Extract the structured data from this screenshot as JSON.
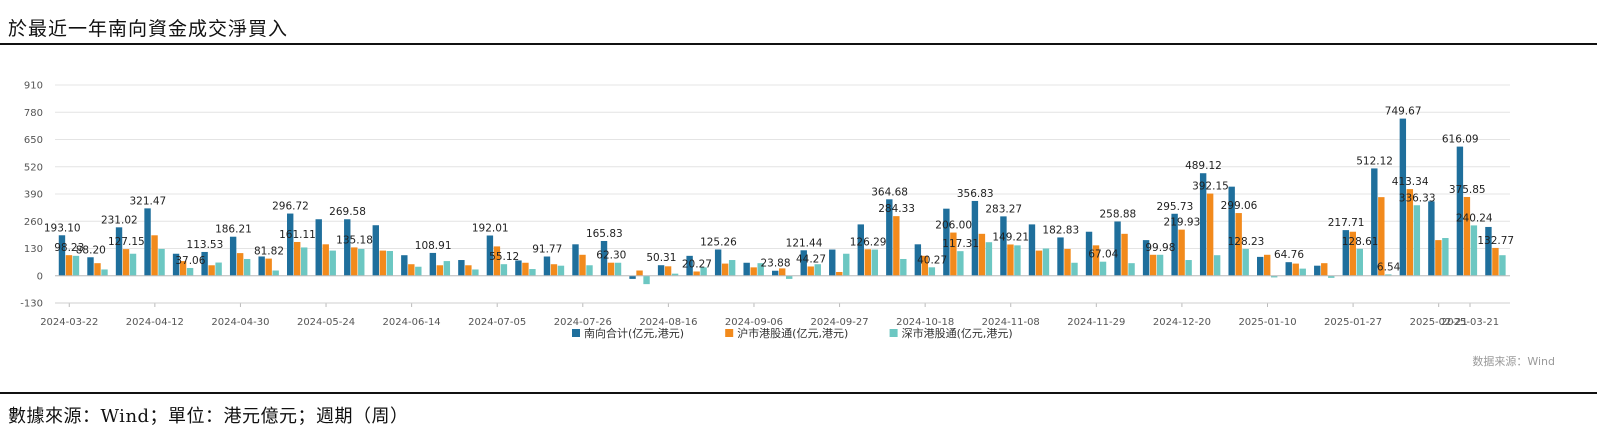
{
  "title": "於最近一年南向資金成交淨買入",
  "footer": "數據來源：Wind；單位：港元億元；週期（周）",
  "source_note": "数据来源：Wind",
  "colors": {
    "south": "#1f6f9c",
    "sh": "#f28a1c",
    "sz": "#6cc7c2"
  },
  "chart_data": {
    "type": "bar",
    "ylim": [
      -130,
      910
    ],
    "yticks": [
      -130,
      0,
      130,
      260,
      390,
      520,
      650,
      780,
      910
    ],
    "grid": true,
    "legend_position": "bottom",
    "xtick_labels": [
      {
        "index": 0,
        "label": "2024-03-22"
      },
      {
        "index": 3,
        "label": "2024-04-12"
      },
      {
        "index": 6,
        "label": "2024-04-30"
      },
      {
        "index": 9,
        "label": "2024-05-24"
      },
      {
        "index": 12,
        "label": "2024-06-14"
      },
      {
        "index": 15,
        "label": "2024-07-05"
      },
      {
        "index": 18,
        "label": "2024-07-26"
      },
      {
        "index": 21,
        "label": "2024-08-16"
      },
      {
        "index": 24,
        "label": "2024-09-06"
      },
      {
        "index": 27,
        "label": "2024-09-27"
      },
      {
        "index": 30,
        "label": "2024-10-18"
      },
      {
        "index": 33,
        "label": "2024-11-08"
      },
      {
        "index": 36,
        "label": "2024-11-29"
      },
      {
        "index": 39,
        "label": "2024-12-20"
      },
      {
        "index": 42,
        "label": "2025-01-10"
      },
      {
        "index": 45,
        "label": "2025-01-27"
      },
      {
        "index": 48,
        "label": "2025-02-21"
      },
      {
        "index": 52,
        "label": "2025-03-21"
      }
    ],
    "series": [
      {
        "name": "南向合计(亿元,港元)",
        "values": [
          193.1,
          88.2,
          231.02,
          321.47,
          105,
          113.53,
          186.21,
          92,
          296.72,
          269.58,
          269.58,
          241,
          98,
          108.91,
          75,
          192.01,
          73,
          91.77,
          150,
          165.83,
          -15,
          50.31,
          95,
          125.26,
          62,
          23.88,
          121.44,
          125,
          245,
          364.68,
          150,
          320,
          356.83,
          283.27,
          245,
          182.83,
          210,
          258.88,
          170,
          295.73,
          489.12,
          425,
          90,
          64.76,
          48,
          217.71,
          512.12,
          749.67,
          355,
          616.09,
          232.77
        ]
      },
      {
        "name": "沪市港股通(亿元,港元)",
        "values": [
          98.23,
          60,
          127.15,
          193,
          70,
          50,
          108,
          81.82,
          161.11,
          150,
          135.18,
          120,
          55,
          50,
          50,
          140,
          62,
          55,
          100,
          62.3,
          25,
          45,
          20.27,
          58,
          40,
          35,
          44.27,
          18,
          126.29,
          284.33,
          95,
          206.0,
          200,
          149.21,
          120,
          128,
          145,
          200,
          100,
          219.93,
          392.15,
          299.06,
          100,
          58,
          60,
          210,
          375,
          413.34,
          170,
          375.85,
          132.77
        ]
      },
      {
        "name": "深市港股通(亿元,港元)",
        "values": [
          95,
          30,
          105,
          128,
          37.06,
          63,
          80,
          25,
          135,
          120,
          128,
          118,
          43,
          70,
          30,
          55.12,
          32,
          48,
          50,
          62,
          -40,
          10,
          40,
          75,
          60,
          -15,
          55,
          105,
          125,
          80,
          40.27,
          117.31,
          160,
          145,
          130,
          62,
          67.04,
          60,
          99.98,
          75,
          98,
          128.23,
          -8,
          34,
          -10,
          128.61,
          6.54,
          336.33,
          180,
          240.24,
          98
        ]
      }
    ],
    "annotations": [
      {
        "series": 0,
        "index": 0,
        "text": "193.10"
      },
      {
        "series": 1,
        "index": 0,
        "text": "98.23"
      },
      {
        "series": 0,
        "index": 1,
        "text": "88.20"
      },
      {
        "series": 0,
        "index": 2,
        "text": "231.02"
      },
      {
        "series": 0,
        "index": 3,
        "text": "321.47"
      },
      {
        "series": 1,
        "index": 2,
        "text": "127.15"
      },
      {
        "series": 2,
        "index": 4,
        "text": "37.06"
      },
      {
        "series": 0,
        "index": 5,
        "text": "113.53"
      },
      {
        "series": 0,
        "index": 6,
        "text": "186.21"
      },
      {
        "series": 1,
        "index": 7,
        "text": "81.82"
      },
      {
        "series": 0,
        "index": 8,
        "text": "296.72"
      },
      {
        "series": 1,
        "index": 8,
        "text": "161.11"
      },
      {
        "series": 0,
        "index": 10,
        "text": "269.58"
      },
      {
        "series": 1,
        "index": 10,
        "text": "135.18"
      },
      {
        "series": 0,
        "index": 13,
        "text": "108.91"
      },
      {
        "series": 0,
        "index": 15,
        "text": "192.01"
      },
      {
        "series": 2,
        "index": 15,
        "text": "55.12"
      },
      {
        "series": 0,
        "index": 17,
        "text": "91.77"
      },
      {
        "series": 0,
        "index": 19,
        "text": "165.83"
      },
      {
        "series": 1,
        "index": 19,
        "text": "62.30"
      },
      {
        "series": 0,
        "index": 21,
        "text": "50.31"
      },
      {
        "series": 1,
        "index": 22,
        "text": "20.27"
      },
      {
        "series": 0,
        "index": 23,
        "text": "125.26"
      },
      {
        "series": 0,
        "index": 25,
        "text": "23.88"
      },
      {
        "series": 0,
        "index": 26,
        "text": "121.44"
      },
      {
        "series": 1,
        "index": 26,
        "text": "44.27"
      },
      {
        "series": 0,
        "index": 29,
        "text": "364.68"
      },
      {
        "series": 1,
        "index": 29,
        "text": "284.33"
      },
      {
        "series": 1,
        "index": 28,
        "text": "126.29"
      },
      {
        "series": 2,
        "index": 30,
        "text": "40.27"
      },
      {
        "series": 1,
        "index": 31,
        "text": "206.00"
      },
      {
        "series": 2,
        "index": 31,
        "text": "117.31"
      },
      {
        "series": 0,
        "index": 32,
        "text": "356.83"
      },
      {
        "series": 0,
        "index": 33,
        "text": "283.27"
      },
      {
        "series": 1,
        "index": 33,
        "text": "149.21"
      },
      {
        "series": 0,
        "index": 35,
        "text": "182.83"
      },
      {
        "series": 0,
        "index": 37,
        "text": "258.88"
      },
      {
        "series": 2,
        "index": 36,
        "text": "67.04"
      },
      {
        "series": 2,
        "index": 38,
        "text": "99.98"
      },
      {
        "series": 0,
        "index": 39,
        "text": "295.73"
      },
      {
        "series": 1,
        "index": 39,
        "text": "219.93"
      },
      {
        "series": 0,
        "index": 40,
        "text": "489.12"
      },
      {
        "series": 1,
        "index": 40,
        "text": "392.15"
      },
      {
        "series": 1,
        "index": 41,
        "text": "299.06"
      },
      {
        "series": 2,
        "index": 41,
        "text": "128.23"
      },
      {
        "series": 0,
        "index": 43,
        "text": "64.76"
      },
      {
        "series": 0,
        "index": 45,
        "text": "217.71"
      },
      {
        "series": 0,
        "index": 46,
        "text": "512.12"
      },
      {
        "series": 2,
        "index": 46,
        "text": "6.54"
      },
      {
        "series": 2,
        "index": 45,
        "text": "128.61"
      },
      {
        "series": 0,
        "index": 47,
        "text": "749.67"
      },
      {
        "series": 1,
        "index": 47,
        "text": "413.34"
      },
      {
        "series": 2,
        "index": 47,
        "text": "336.33"
      },
      {
        "series": 0,
        "index": 49,
        "text": "616.09"
      },
      {
        "series": 1,
        "index": 49,
        "text": "375.85"
      },
      {
        "series": 2,
        "index": 49,
        "text": "240.24"
      },
      {
        "series": 1,
        "index": 50,
        "text": "132.77"
      }
    ]
  }
}
